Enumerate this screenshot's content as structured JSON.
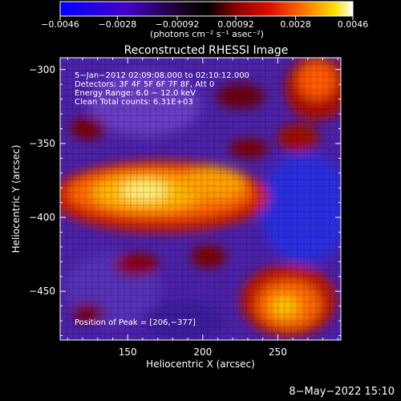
{
  "colorbar": {
    "ticks": [
      {
        "value": -0.0046,
        "label": "−0.0046"
      },
      {
        "value": -0.0028,
        "label": "−0.0028"
      },
      {
        "value": -0.00092,
        "label": "−0.00092"
      },
      {
        "value": 0.00092,
        "label": "0.00092"
      },
      {
        "value": 0.0028,
        "label": "0.0028"
      },
      {
        "value": 0.0046,
        "label": "0.0046"
      }
    ],
    "units_label": "(photons cm⁻² s⁻¹ asec⁻²)",
    "range": [
      -0.0046,
      0.0046
    ]
  },
  "plot": {
    "title": "Reconstructed RHESSI Image",
    "xlabel": "Heliocentric X (arcsec)",
    "ylabel": "Heliocentric Y (arcsec)",
    "xlim": [
      105,
      292
    ],
    "ylim": [
      -483,
      -292
    ],
    "xticks": [
      {
        "value": 150,
        "label": "150"
      },
      {
        "value": 200,
        "label": "200"
      },
      {
        "value": 250,
        "label": "250"
      }
    ],
    "yticks": [
      {
        "value": -300,
        "label": "−300"
      },
      {
        "value": -350,
        "label": "−350"
      },
      {
        "value": -400,
        "label": "−400"
      },
      {
        "value": -450,
        "label": "−450"
      }
    ],
    "overlay_lines": [
      "5−Jan−2012 02:09:08.000 to 02:10:12.000",
      "Detectors: 3F 4F 5F 6F 7F 8F, Att 0",
      "Energy Range: 6.0 − 12.0 keV",
      "Clean     Total counts: 6.31E+03"
    ],
    "peak_text": "Position of Peak = [206,−377]",
    "peak": [
      206,
      -377
    ]
  },
  "footer": {
    "timestamp": "8−May−2022 15:10"
  },
  "colors": {
    "background": "#000000",
    "foreground": "#ffffff",
    "colormap_low": "#0000ff",
    "colormap_mid": "#000000",
    "colormap_high": "#ffffff"
  }
}
